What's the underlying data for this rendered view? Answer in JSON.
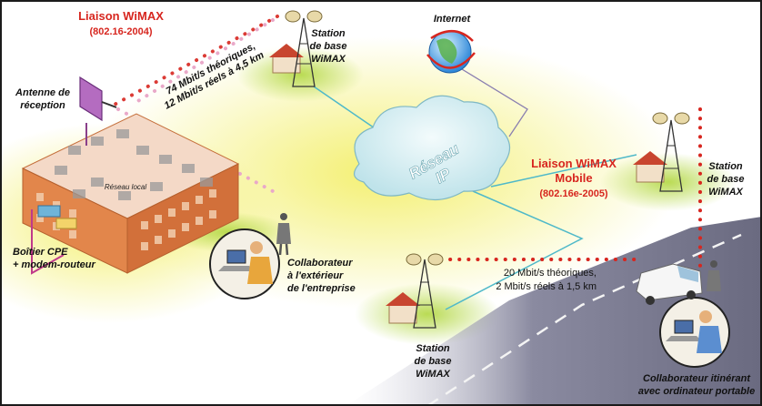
{
  "diagram": {
    "wimax_link": {
      "title": "Liaison WiMAX",
      "standard": "(802.16-2004)"
    },
    "wimax_rates": {
      "line1": "74 Mbit/s théoriques,",
      "line2": "12 Mbit/s réels à 4,5 km"
    },
    "mobile_link": {
      "title_line1": "Liaison WiMAX",
      "title_line2": "Mobile",
      "standard": "(802.16e-2005)"
    },
    "mobile_rates": {
      "line1": "20 Mbit/s théoriques,",
      "line2": "2 Mbit/s réels à 1,5 km"
    },
    "antenna": {
      "line1": "Antenne de",
      "line2": "réception"
    },
    "local_network": "Réseau local",
    "cpe_box": {
      "line1": "Boîtier CPE",
      "line2": "+ modem-routeur"
    },
    "external_employee": {
      "line1": "Collaborateur",
      "line2": "à l'extérieur",
      "line3": "de l'entreprise"
    },
    "station_top": {
      "line1": "Station",
      "line2": "de base",
      "line3": "WiMAX"
    },
    "station_right": {
      "line1": "Station",
      "line2": "de base",
      "line3": "WiMAX"
    },
    "station_bottom": {
      "line1": "Station",
      "line2": "de base",
      "line3": "WiMAX"
    },
    "internet": "Internet",
    "ip_network": {
      "line1": "Réseau",
      "line2": "IP"
    },
    "mobile_employee": {
      "line1": "Collaborateur itinérant",
      "line2": "avec ordinateur portable"
    }
  },
  "colors": {
    "accent_red": "#d7261f",
    "link_cyan": "#4fb9c9",
    "pink_dots": "#e9a9c9",
    "building": "#e2864b"
  }
}
